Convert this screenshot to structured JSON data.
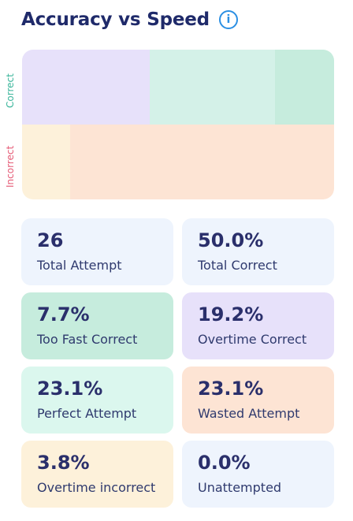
{
  "header": {
    "title": "Accuracy vs Speed",
    "info_icon": "info-icon"
  },
  "axis": {
    "correct": "Correct",
    "incorrect": "Incorrect"
  },
  "matrix": {
    "rows": [
      {
        "cells": [
          {
            "key": "overtime-correct",
            "fraction": 0.41,
            "color": "#e7e1fa"
          },
          {
            "key": "perfect-attempt",
            "fraction": 0.4,
            "color": "#d4f1e8"
          },
          {
            "key": "too-fast-correct",
            "fraction": 0.19,
            "color": "#c6ecdd"
          }
        ]
      },
      {
        "cells": [
          {
            "key": "overtime-incorrect",
            "fraction": 0.155,
            "color": "#fdf1da"
          },
          {
            "key": "wasted-attempt",
            "fraction": 0.845,
            "color": "#fde4d4"
          }
        ]
      }
    ]
  },
  "cards": [
    {
      "value": "26",
      "label": "Total Attempt",
      "color": "#eef4fd"
    },
    {
      "value": "50.0%",
      "label": "Total Correct",
      "color": "#eef4fd"
    },
    {
      "value": "7.7%",
      "label": "Too Fast Correct",
      "color": "#c6ecdd"
    },
    {
      "value": "19.2%",
      "label": "Overtime Correct",
      "color": "#e7e1fa"
    },
    {
      "value": "23.1%",
      "label": "Perfect Attempt",
      "color": "#dbf7ee"
    },
    {
      "value": "23.1%",
      "label": "Wasted Attempt",
      "color": "#fde4d4"
    },
    {
      "value": "3.8%",
      "label": "Overtime incorrect",
      "color": "#fdf1da"
    },
    {
      "value": "0.0%",
      "label": "Unattempted",
      "color": "#eef4fd"
    }
  ]
}
